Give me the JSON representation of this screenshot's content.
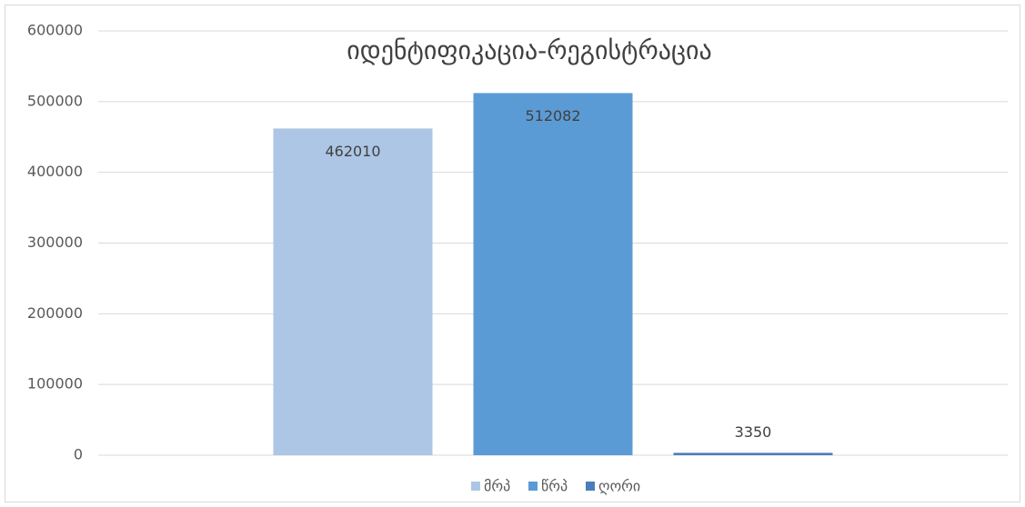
{
  "chart_data": {
    "type": "bar",
    "title": "იდენტიფიკაცია-რეგისტრაცია",
    "categories": [
      null
    ],
    "series": [
      {
        "name": "მრპ",
        "color": "#adc6e5",
        "values": [
          462010
        ]
      },
      {
        "name": "წრპ",
        "color": "#5b9bd5",
        "values": [
          512082
        ]
      },
      {
        "name": "ღორი",
        "color": "#4a7ebb",
        "values": [
          3350
        ]
      }
    ],
    "ylim": [
      0,
      600000
    ],
    "yticks": [
      0,
      100000,
      200000,
      300000,
      400000,
      500000,
      600000
    ],
    "grid": true,
    "legend": "bottom"
  }
}
